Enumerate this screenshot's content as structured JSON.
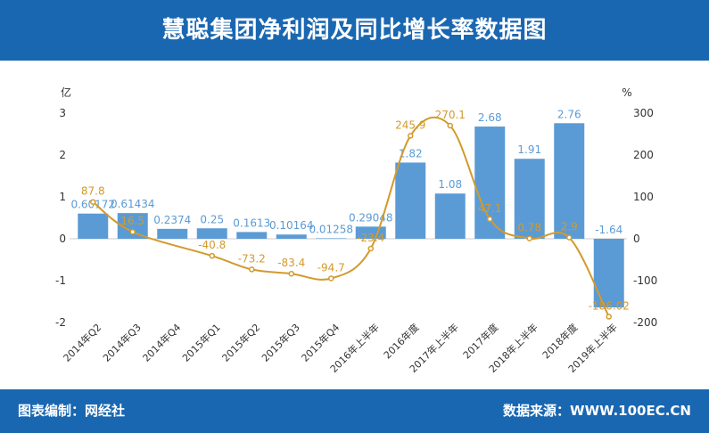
{
  "header": {
    "title": "慧聪集团净利润及同比增长率数据图"
  },
  "footer": {
    "left": "图表编制：网经社",
    "right": "数据来源：WWW.100EC.CN"
  },
  "colors": {
    "header_bg": "#1a67b1",
    "bar": "#5b9bd5",
    "line": "#d39a2b"
  },
  "chart_data": {
    "type": "bar",
    "categories": [
      "2014年Q2",
      "2014年Q3",
      "2014年Q4",
      "2015年Q1",
      "2015年Q2",
      "2015年Q3",
      "2015年Q4",
      "2016年上半年",
      "2016年度",
      "2017年上半年",
      "2017年度",
      "2018年上半年",
      "2018年度",
      "2019年上半年"
    ],
    "series": [
      {
        "values": [
          0.60172,
          0.61434,
          0.2374,
          0.25,
          0.1613,
          0.10164,
          0.01258,
          0.29048,
          1.82,
          1.08,
          2.68,
          1.91,
          2.76,
          -1.64
        ],
        "labels": [
          "0.60172",
          "0.61434",
          "0.2374",
          "0.25",
          "0.1613",
          "0.10164",
          "0.01258",
          "0.29048",
          "1.82",
          "1.08",
          "2.68",
          "1.91",
          "2.76",
          "-1.64"
        ]
      },
      {
        "values": [
          87.8,
          16.5,
          null,
          -40.8,
          -73.2,
          -83.4,
          -94.7,
          -23.4,
          245.9,
          270.1,
          47.1,
          0.78,
          2.9,
          -186.02
        ],
        "labels": [
          "87.8",
          "16.5",
          "",
          "-40.8",
          "-73.2",
          "-83.4",
          "-94.7",
          "-23.4",
          "245.9",
          "270.1",
          "47.1",
          "0.78",
          "2.9",
          "-186.02"
        ]
      }
    ],
    "left_axis": {
      "label": "亿",
      "ylim": [
        -2,
        3
      ],
      "ticks": [
        "-2",
        "-1",
        "0",
        "1",
        "2",
        "3"
      ]
    },
    "right_axis": {
      "label": "%",
      "ylim": [
        -200,
        300
      ],
      "ticks": [
        "-200",
        "-100",
        "0",
        "100",
        "200",
        "300"
      ]
    },
    "legend": "none"
  }
}
